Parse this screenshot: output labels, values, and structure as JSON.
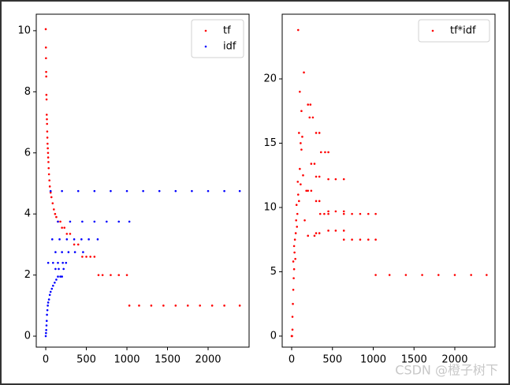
{
  "chart_data": [
    {
      "type": "scatter",
      "legend": "upper right",
      "xlim": [
        -117,
        2505
      ],
      "ylim": [
        -0.36,
        10.54
      ],
      "xticks": [
        0,
        500,
        1000,
        1500,
        2000
      ],
      "yticks": [
        0,
        2,
        4,
        6,
        8,
        10
      ],
      "series": [
        {
          "name": "tf",
          "color": "#ff0000",
          "x": [
            0,
            2,
            3,
            5,
            6,
            8,
            10,
            12,
            14,
            16,
            18,
            20,
            22,
            25,
            28,
            30,
            33,
            36,
            40,
            45,
            50,
            60,
            70,
            85,
            100,
            115,
            130,
            150,
            180,
            200,
            230,
            260,
            300,
            350,
            400,
            450,
            500,
            550,
            600,
            650,
            700,
            800,
            900,
            1000,
            1030,
            1150,
            1300,
            1450,
            1600,
            1750,
            1900,
            2050,
            2200,
            2390
          ],
          "values": [
            10.05,
            9.45,
            9.1,
            8.65,
            8.5,
            7.9,
            7.75,
            7.25,
            7.1,
            6.95,
            6.7,
            6.5,
            6.3,
            6.15,
            6.0,
            5.85,
            5.7,
            5.5,
            5.3,
            5.1,
            4.9,
            4.7,
            4.55,
            4.35,
            4.15,
            4.0,
            3.9,
            3.75,
            3.75,
            3.55,
            3.55,
            3.35,
            3.35,
            3.0,
            3.0,
            2.6,
            2.6,
            2.6,
            2.6,
            2.0,
            2.0,
            2.0,
            2.0,
            2.0,
            1.0,
            1.0,
            1.0,
            1.0,
            1.0,
            1.0,
            1.0,
            1.0,
            1.0,
            1.0
          ]
        },
        {
          "name": "idf",
          "color": "#0000ff",
          "x": [
            0,
            3,
            6,
            9,
            12,
            15,
            20,
            25,
            30,
            40,
            50,
            60,
            75,
            90,
            110,
            130,
            150,
            180,
            200,
            120,
            160,
            220,
            30,
            90,
            150,
            210,
            250,
            120,
            200,
            280,
            360,
            460,
            80,
            170,
            260,
            350,
            440,
            530,
            640,
            150,
            300,
            450,
            600,
            750,
            900,
            1030,
            60,
            200,
            400,
            600,
            800,
            1000,
            1200,
            1400,
            1600,
            1800,
            2000,
            2200,
            2390
          ],
          "values": [
            0,
            0.1,
            0.2,
            0.35,
            0.5,
            0.7,
            0.85,
            1.0,
            1.1,
            1.2,
            1.35,
            1.45,
            1.55,
            1.65,
            1.75,
            1.85,
            1.95,
            1.95,
            1.95,
            2.2,
            2.2,
            2.2,
            2.4,
            2.4,
            2.4,
            2.4,
            2.4,
            2.75,
            2.75,
            2.75,
            2.75,
            2.75,
            3.17,
            3.17,
            3.17,
            3.17,
            3.17,
            3.17,
            3.17,
            3.75,
            3.75,
            3.75,
            3.75,
            3.75,
            3.75,
            3.75,
            4.75,
            4.75,
            4.75,
            4.75,
            4.75,
            4.75,
            4.75,
            4.75,
            4.75,
            4.75,
            4.75,
            4.75,
            4.75
          ]
        }
      ]
    },
    {
      "type": "scatter",
      "legend": "upper right",
      "xlim": [
        -116,
        2493
      ],
      "ylim": [
        -0.86,
        25.03
      ],
      "xticks": [
        0,
        500,
        1000,
        1500,
        2000
      ],
      "yticks": [
        0,
        5,
        10,
        15,
        20
      ],
      "series": [
        {
          "name": "tf*idf",
          "color": "#ff0000",
          "x": [
            0,
            5,
            10,
            10,
            15,
            20,
            25,
            30,
            20,
            35,
            40,
            30,
            50,
            45,
            55,
            60,
            70,
            65,
            80,
            75,
            90,
            100,
            110,
            120,
            130,
            110,
            90,
            80,
            150,
            100,
            120,
            140,
            160,
            180,
            200,
            240,
            220,
            260,
            200,
            230,
            240,
            280,
            300,
            340,
            300,
            340,
            300,
            340,
            300,
            340,
            360,
            410,
            450,
            350,
            400,
            450,
            200,
            280,
            450,
            540,
            640,
            450,
            540,
            640,
            450,
            540,
            640,
            640,
            740,
            840,
            940,
            1030,
            640,
            740,
            840,
            940,
            1030,
            1030,
            1200,
            1400,
            1600,
            1800,
            2000,
            2200,
            2390
          ],
          "values": [
            0,
            0,
            0.5,
            1.5,
            2.5,
            3.6,
            4.5,
            5.2,
            5.8,
            6.5,
            7.5,
            7.0,
            8.0,
            6.0,
            9.0,
            10.2,
            9.5,
            8.5,
            11.0,
            12.0,
            10.5,
            13.0,
            11.8,
            14.5,
            15.5,
            15.0,
            15.8,
            23.8,
            20.5,
            19.0,
            17.5,
            12.5,
            9.0,
            11.3,
            11.3,
            11.3,
            17.0,
            17.0,
            18.0,
            18.0,
            13.4,
            13.4,
            10.5,
            10.5,
            15.8,
            15.8,
            12.4,
            12.4,
            8.0,
            8.0,
            14.3,
            14.3,
            14.3,
            9.5,
            9.5,
            9.5,
            7.8,
            7.8,
            12.2,
            12.2,
            12.2,
            9.7,
            9.7,
            9.7,
            8.2,
            8.2,
            8.2,
            9.5,
            9.5,
            9.5,
            9.5,
            9.5,
            7.5,
            7.5,
            7.5,
            7.5,
            7.5,
            4.75,
            4.75,
            4.75,
            4.75,
            4.75,
            4.75,
            4.75,
            4.75
          ]
        }
      ]
    }
  ],
  "watermark": "CSDN @橙子树下"
}
